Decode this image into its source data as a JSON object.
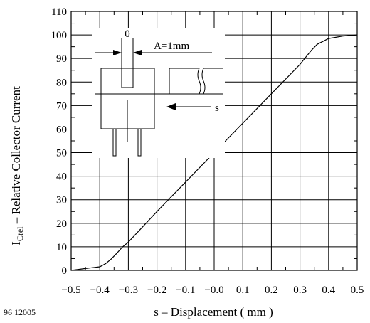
{
  "chart_data": {
    "type": "line",
    "ylabel_main": "I",
    "ylabel_sub": "Crel",
    "ylabel_rest": " – Relative Collector Current",
    "xlabel": "s – Displacement ( mm )",
    "figure_code": "96 12005",
    "xlim": [
      -0.5,
      0.5
    ],
    "ylim": [
      0,
      110
    ],
    "x_ticks": [
      -0.5,
      -0.4,
      -0.3,
      -0.2,
      -0.1,
      0.0,
      0.1,
      0.2,
      0.3,
      0.4,
      0.5
    ],
    "x_tick_labels": [
      "−0.5",
      "−0.4",
      "−0.3",
      "−0.2",
      "−0.1",
      "−0.0",
      "0.1",
      "0.2",
      "0.3",
      "0.4",
      "0.5"
    ],
    "y_ticks": [
      0,
      10,
      20,
      30,
      40,
      50,
      60,
      70,
      80,
      90,
      100,
      110
    ],
    "y_tick_labels": [
      "0",
      "10",
      "20",
      "30",
      "40",
      "50",
      "60",
      "70",
      "80",
      "90",
      "100",
      "110"
    ],
    "grid": true,
    "series": [
      {
        "x": [
          -0.5,
          -0.45,
          -0.4,
          -0.38,
          -0.36,
          -0.34,
          -0.32,
          -0.3,
          -0.2,
          -0.1,
          0.0,
          0.1,
          0.2,
          0.3,
          0.32,
          0.34,
          0.36,
          0.4,
          0.45,
          0.5
        ],
        "y": [
          0,
          0.8,
          1.5,
          2.8,
          4.8,
          7.3,
          10,
          12,
          25,
          37.5,
          50,
          62.5,
          75,
          87.5,
          90.5,
          93.5,
          96,
          98.5,
          99.5,
          100
        ]
      }
    ],
    "inset": {
      "gap_label": "0",
      "aperture_label": "A=1mm",
      "direction_label": "s"
    }
  }
}
